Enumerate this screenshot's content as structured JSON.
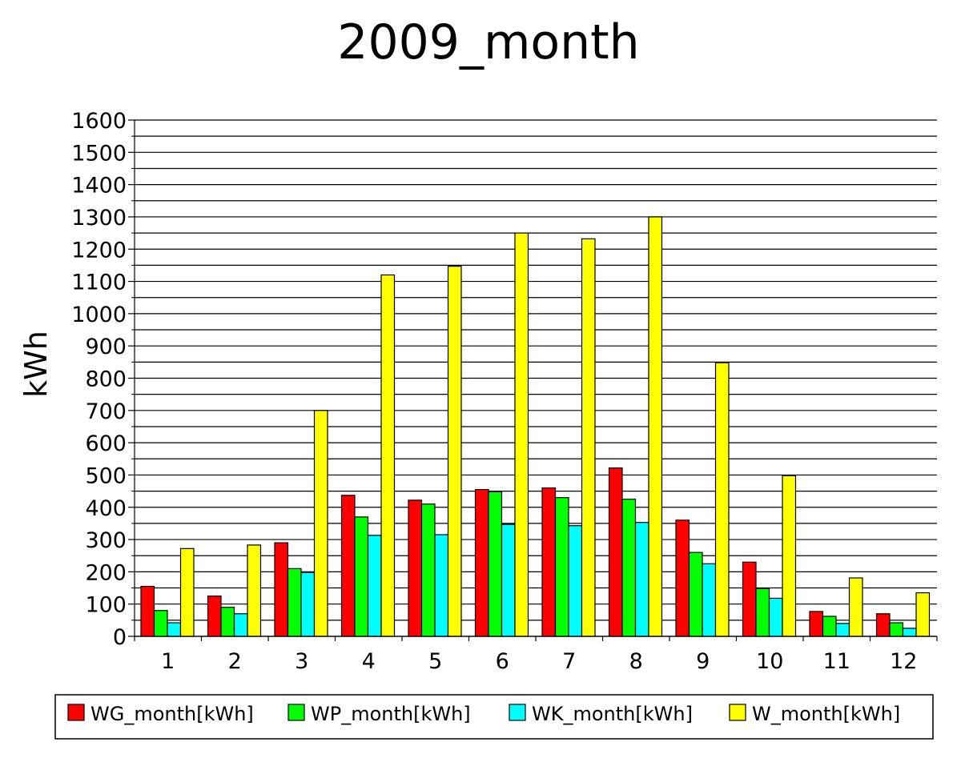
{
  "chart_data": {
    "type": "bar",
    "title": "2009_month",
    "xlabel": "",
    "ylabel": "kWh",
    "ylim": [
      0,
      1600
    ],
    "yticks": [
      0,
      100,
      200,
      300,
      400,
      500,
      600,
      700,
      800,
      900,
      1000,
      1100,
      1200,
      1300,
      1400,
      1500,
      1600
    ],
    "grid": true,
    "legend_position": "bottom",
    "categories": [
      "1",
      "2",
      "3",
      "4",
      "5",
      "6",
      "7",
      "8",
      "9",
      "10",
      "11",
      "12"
    ],
    "series": [
      {
        "name": "WG_month[kWh]",
        "color": "#ff0000",
        "values": [
          155,
          125,
          290,
          437,
          422,
          455,
          460,
          522,
          360,
          230,
          77,
          70
        ]
      },
      {
        "name": "WP_month[kWh]",
        "color": "#00ff00",
        "values": [
          80,
          90,
          210,
          370,
          410,
          448,
          430,
          425,
          260,
          148,
          62,
          42
        ]
      },
      {
        "name": "WK_month[kWh]",
        "color": "#00ffff",
        "values": [
          42,
          70,
          198,
          313,
          315,
          347,
          343,
          353,
          225,
          118,
          40,
          25
        ]
      },
      {
        "name": "W_month[kWh]",
        "color": "#ffff00",
        "values": [
          272,
          283,
          700,
          1120,
          1147,
          1250,
          1232,
          1300,
          848,
          498,
          181,
          135
        ]
      }
    ]
  }
}
